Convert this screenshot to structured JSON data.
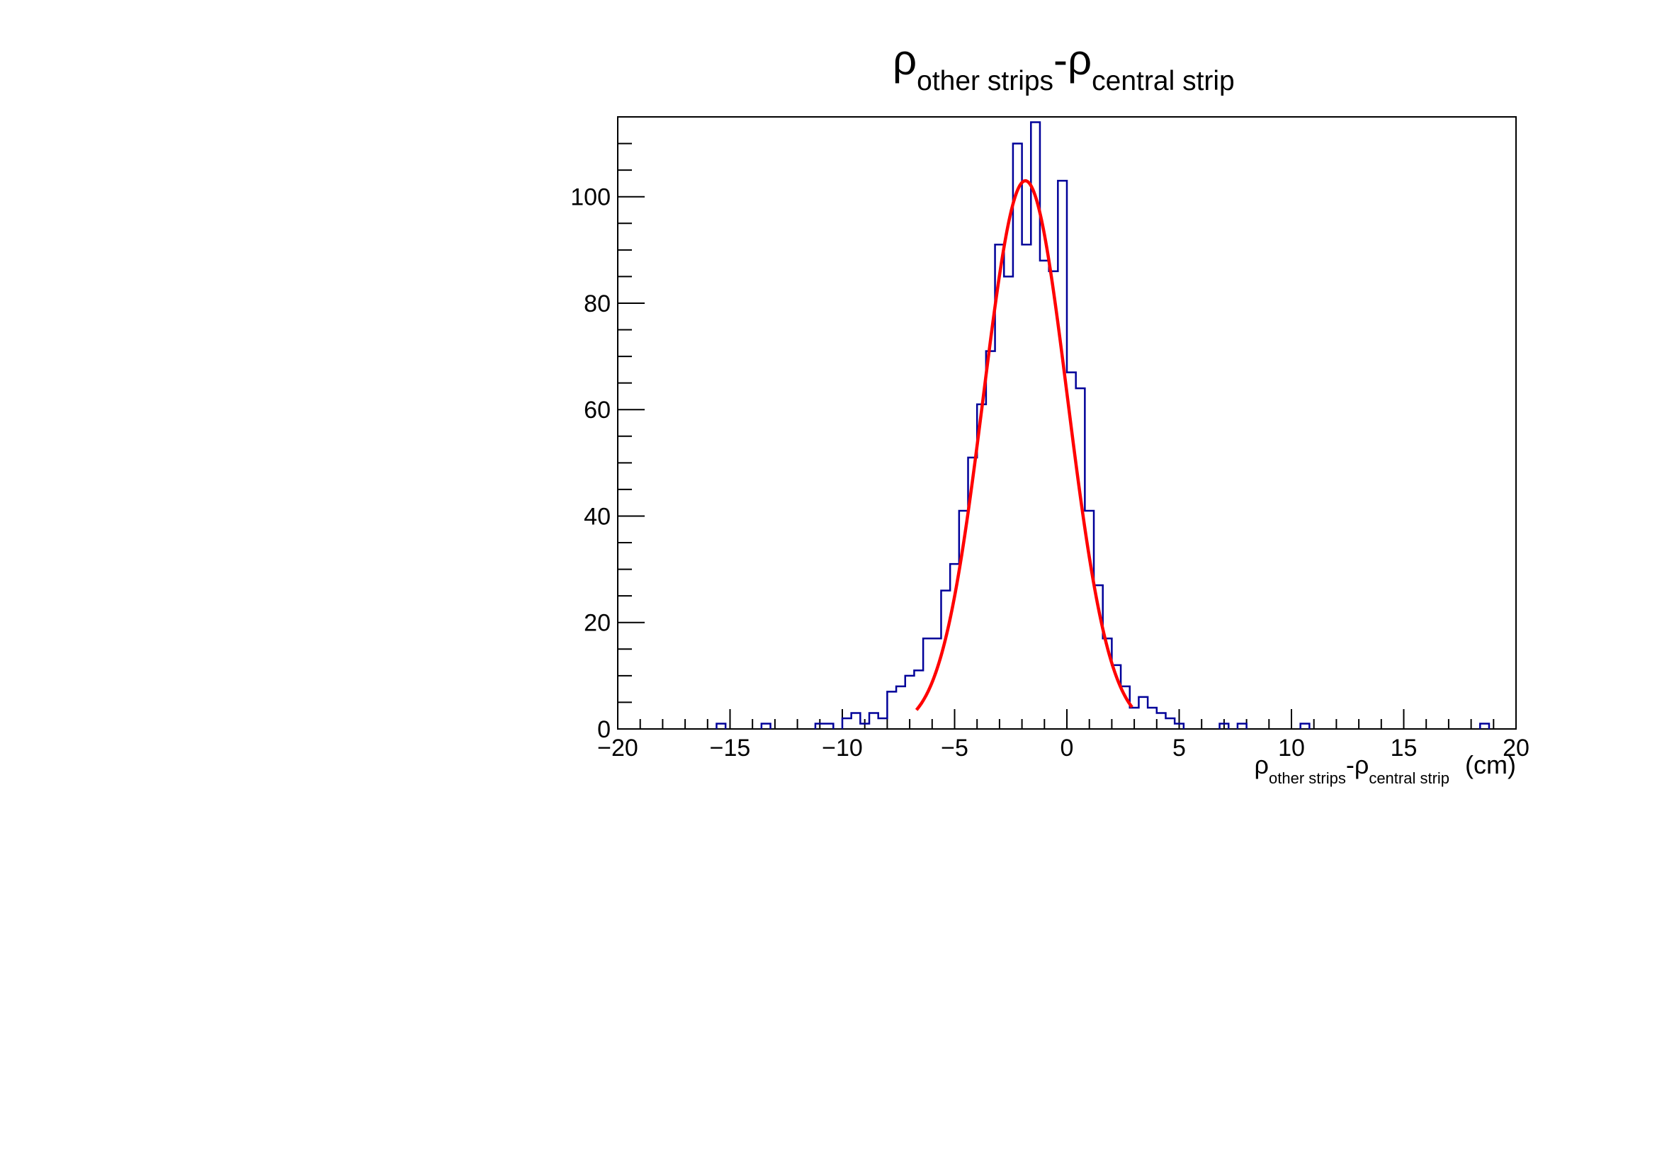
{
  "chart_data": {
    "type": "bar",
    "title": {
      "rho1": "ρ",
      "sub1": "other strips",
      "dash": "-",
      "rho2": "ρ",
      "sub2": "central strip"
    },
    "xlabel": {
      "rho1": "ρ",
      "sub1": "other strips",
      "dash": "-",
      "rho2": "ρ",
      "sub2": "central strip",
      "unit": "(cm)"
    },
    "ylabel": "",
    "xlim": [
      -20,
      20
    ],
    "ylim": [
      0,
      115
    ],
    "x_major_ticks": [
      -20,
      -15,
      -10,
      -5,
      0,
      5,
      10,
      15,
      20
    ],
    "x_tick_labels": [
      "−20",
      "−15",
      "−10",
      "−5",
      "0",
      "5",
      "10",
      "15",
      "20"
    ],
    "y_major_ticks": [
      0,
      20,
      40,
      60,
      80,
      100
    ],
    "y_tick_labels": [
      "0",
      "20",
      "40",
      "60",
      "80",
      "100"
    ],
    "grid": false,
    "legend": "none",
    "series": [
      {
        "kind": "histogram",
        "bin_width": 0.4,
        "color": "#000099",
        "bins": [
          {
            "x0": -15.6,
            "y": 1
          },
          {
            "x0": -13.6,
            "y": 1
          },
          {
            "x0": -11.2,
            "y": 1
          },
          {
            "x0": -10.8,
            "y": 1
          },
          {
            "x0": -10.0,
            "y": 2
          },
          {
            "x0": -9.6,
            "y": 3
          },
          {
            "x0": -9.2,
            "y": 1
          },
          {
            "x0": -8.8,
            "y": 3
          },
          {
            "x0": -8.4,
            "y": 2
          },
          {
            "x0": -8.0,
            "y": 7
          },
          {
            "x0": -7.6,
            "y": 8
          },
          {
            "x0": -7.2,
            "y": 10
          },
          {
            "x0": -6.8,
            "y": 11
          },
          {
            "x0": -6.4,
            "y": 17
          },
          {
            "x0": -6.0,
            "y": 17
          },
          {
            "x0": -5.6,
            "y": 26
          },
          {
            "x0": -5.2,
            "y": 31
          },
          {
            "x0": -4.8,
            "y": 41
          },
          {
            "x0": -4.4,
            "y": 51
          },
          {
            "x0": -4.0,
            "y": 61
          },
          {
            "x0": -3.6,
            "y": 71
          },
          {
            "x0": -3.2,
            "y": 91
          },
          {
            "x0": -2.8,
            "y": 85
          },
          {
            "x0": -2.4,
            "y": 110
          },
          {
            "x0": -2.0,
            "y": 91
          },
          {
            "x0": -1.6,
            "y": 114
          },
          {
            "x0": -1.2,
            "y": 88
          },
          {
            "x0": -0.8,
            "y": 86
          },
          {
            "x0": -0.4,
            "y": 103
          },
          {
            "x0": 0.0,
            "y": 67
          },
          {
            "x0": 0.4,
            "y": 64
          },
          {
            "x0": 0.8,
            "y": 41
          },
          {
            "x0": 1.2,
            "y": 27
          },
          {
            "x0": 1.6,
            "y": 17
          },
          {
            "x0": 2.0,
            "y": 12
          },
          {
            "x0": 2.4,
            "y": 8
          },
          {
            "x0": 2.8,
            "y": 4
          },
          {
            "x0": 3.2,
            "y": 6
          },
          {
            "x0": 3.6,
            "y": 4
          },
          {
            "x0": 4.0,
            "y": 3
          },
          {
            "x0": 4.4,
            "y": 2
          },
          {
            "x0": 4.8,
            "y": 1
          },
          {
            "x0": 6.8,
            "y": 1
          },
          {
            "x0": 7.6,
            "y": 1
          },
          {
            "x0": 10.4,
            "y": 1
          },
          {
            "x0": 18.4,
            "y": 1
          }
        ]
      },
      {
        "kind": "gaussian_fit",
        "color": "#ff0000",
        "amplitude": 103,
        "mean": -1.85,
        "sigma": 1.87,
        "x_range": [
          -6.7,
          2.9
        ]
      }
    ]
  }
}
